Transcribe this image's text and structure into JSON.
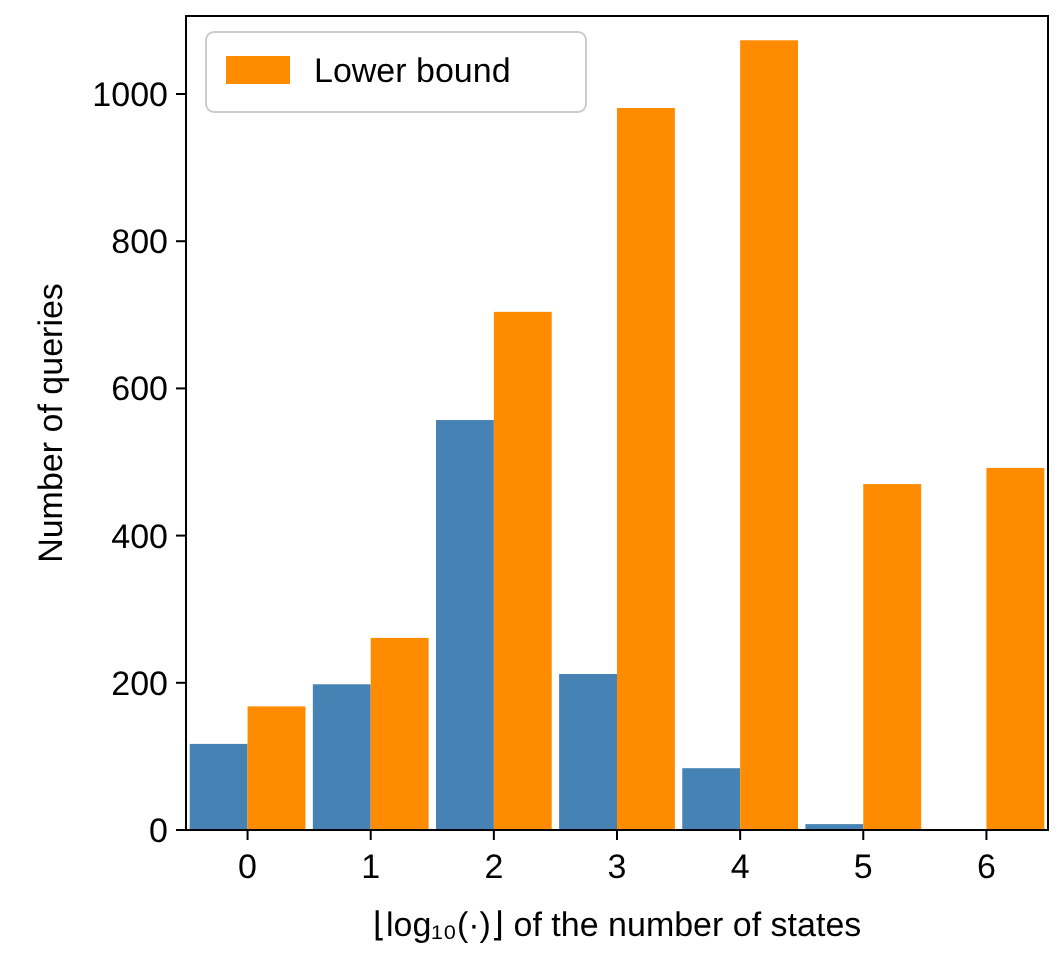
{
  "chart_data": {
    "type": "bar",
    "xlabel": "⌊log₁₀(·)⌋ of the number of states",
    "ylabel": "Number of queries",
    "categories": [
      "0",
      "1",
      "2",
      "3",
      "4",
      "5",
      "6"
    ],
    "series": [
      {
        "color": "#4682b4",
        "values": [
          117,
          198,
          557,
          212,
          84,
          8,
          0
        ]
      },
      {
        "name": "Lower bound",
        "color": "#ff8c00",
        "values": [
          168,
          261,
          704,
          981,
          1073,
          470,
          492
        ]
      }
    ],
    "ylim": [
      0,
      1106
    ],
    "yticks": [
      0,
      200,
      400,
      600,
      800,
      1000
    ],
    "legend": "top left",
    "grid": false
  }
}
